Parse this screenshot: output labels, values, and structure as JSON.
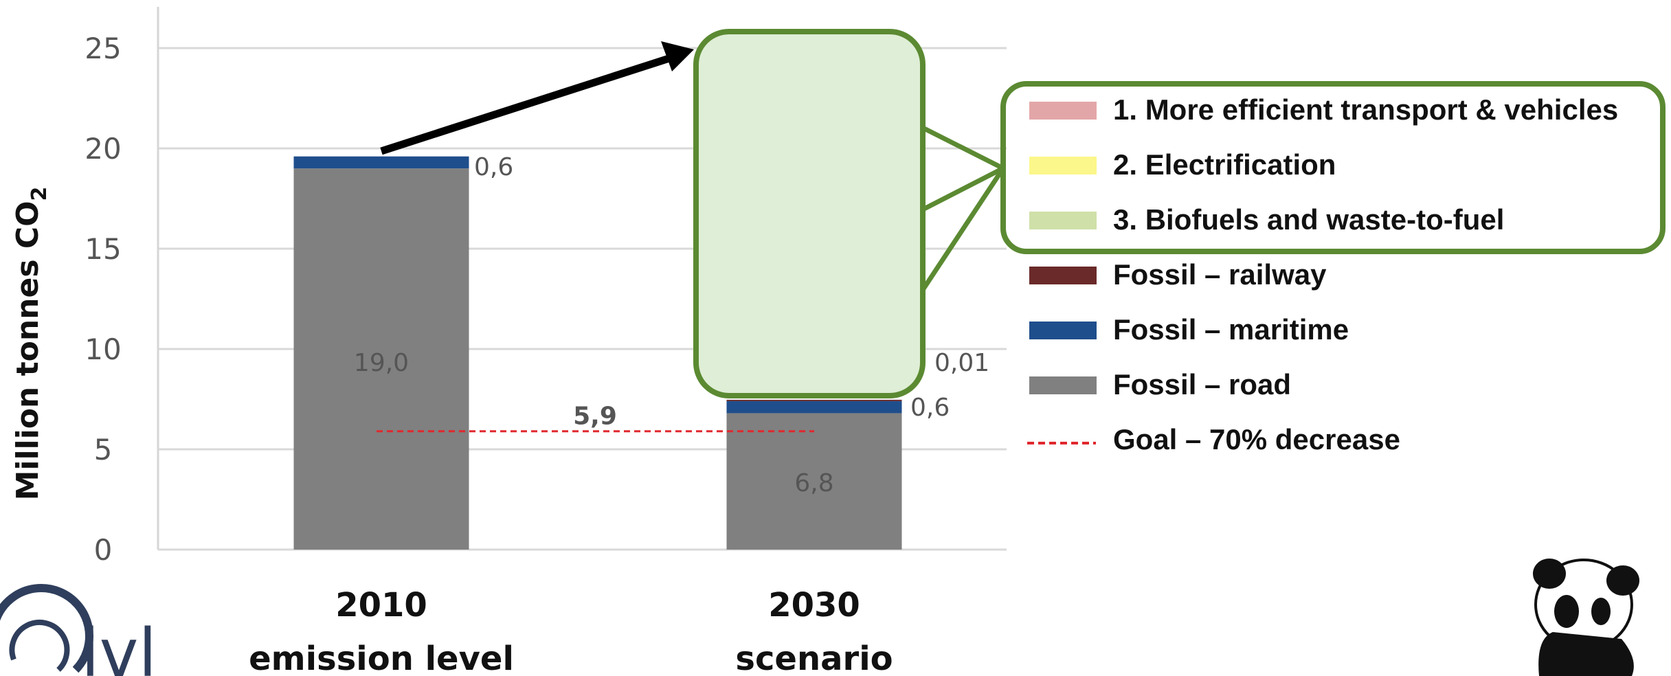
{
  "chart_data": {
    "type": "bar",
    "stacked": true,
    "categories": [
      "2010",
      "2030"
    ],
    "category_sublabels": [
      "emission level",
      "scenario"
    ],
    "ylabel": "Million tonnes CO",
    "ylabel_subscript": "2",
    "ylim": [
      0,
      25
    ],
    "yticks": [
      0,
      5,
      10,
      15,
      20,
      25
    ],
    "grid": true,
    "series": [
      {
        "name": "Fossil – road",
        "color": "#808080",
        "values": [
          19.0,
          6.8
        ],
        "labels": [
          "19,0",
          "6,8"
        ]
      },
      {
        "name": "Fossil – maritime",
        "color": "#1f4e8c",
        "values": [
          0.6,
          0.6
        ],
        "labels": [
          "0,6",
          "0,6"
        ]
      },
      {
        "name": "Fossil – railway",
        "color": "#6b2a2a",
        "values": [
          0.0,
          0.01
        ],
        "labels": [
          "",
          "0,01"
        ]
      }
    ],
    "goal": {
      "name": "Goal – 70% decrease",
      "value": 5.9,
      "label": "5,9",
      "color": "#e0282e"
    },
    "legend": {
      "position": "right",
      "items": [
        {
          "label": "1. More efficient transport & vehicles",
          "color": "#e3a6a8",
          "style": "box"
        },
        {
          "label": "2. Electrification",
          "color": "#fbf78a",
          "style": "box"
        },
        {
          "label": "3. Biofuels and waste-to-fuel",
          "color": "#cfe0a8",
          "style": "box"
        },
        {
          "label": "Fossil – railway",
          "color": "#6b2a2a",
          "style": "box"
        },
        {
          "label": "Fossil – maritime",
          "color": "#1f4e8c",
          "style": "box"
        },
        {
          "label": "Fossil – road",
          "color": "#808080",
          "style": "box"
        },
        {
          "label": "Goal – 70% decrease",
          "color": "#e0282e",
          "style": "dashed"
        }
      ]
    }
  },
  "colors": {
    "callout_border": "#5b8a32",
    "callout_fill": "#dfeed6",
    "arrow": "#000000"
  },
  "logos": {
    "left": "ivl",
    "right": "panda-logo"
  }
}
